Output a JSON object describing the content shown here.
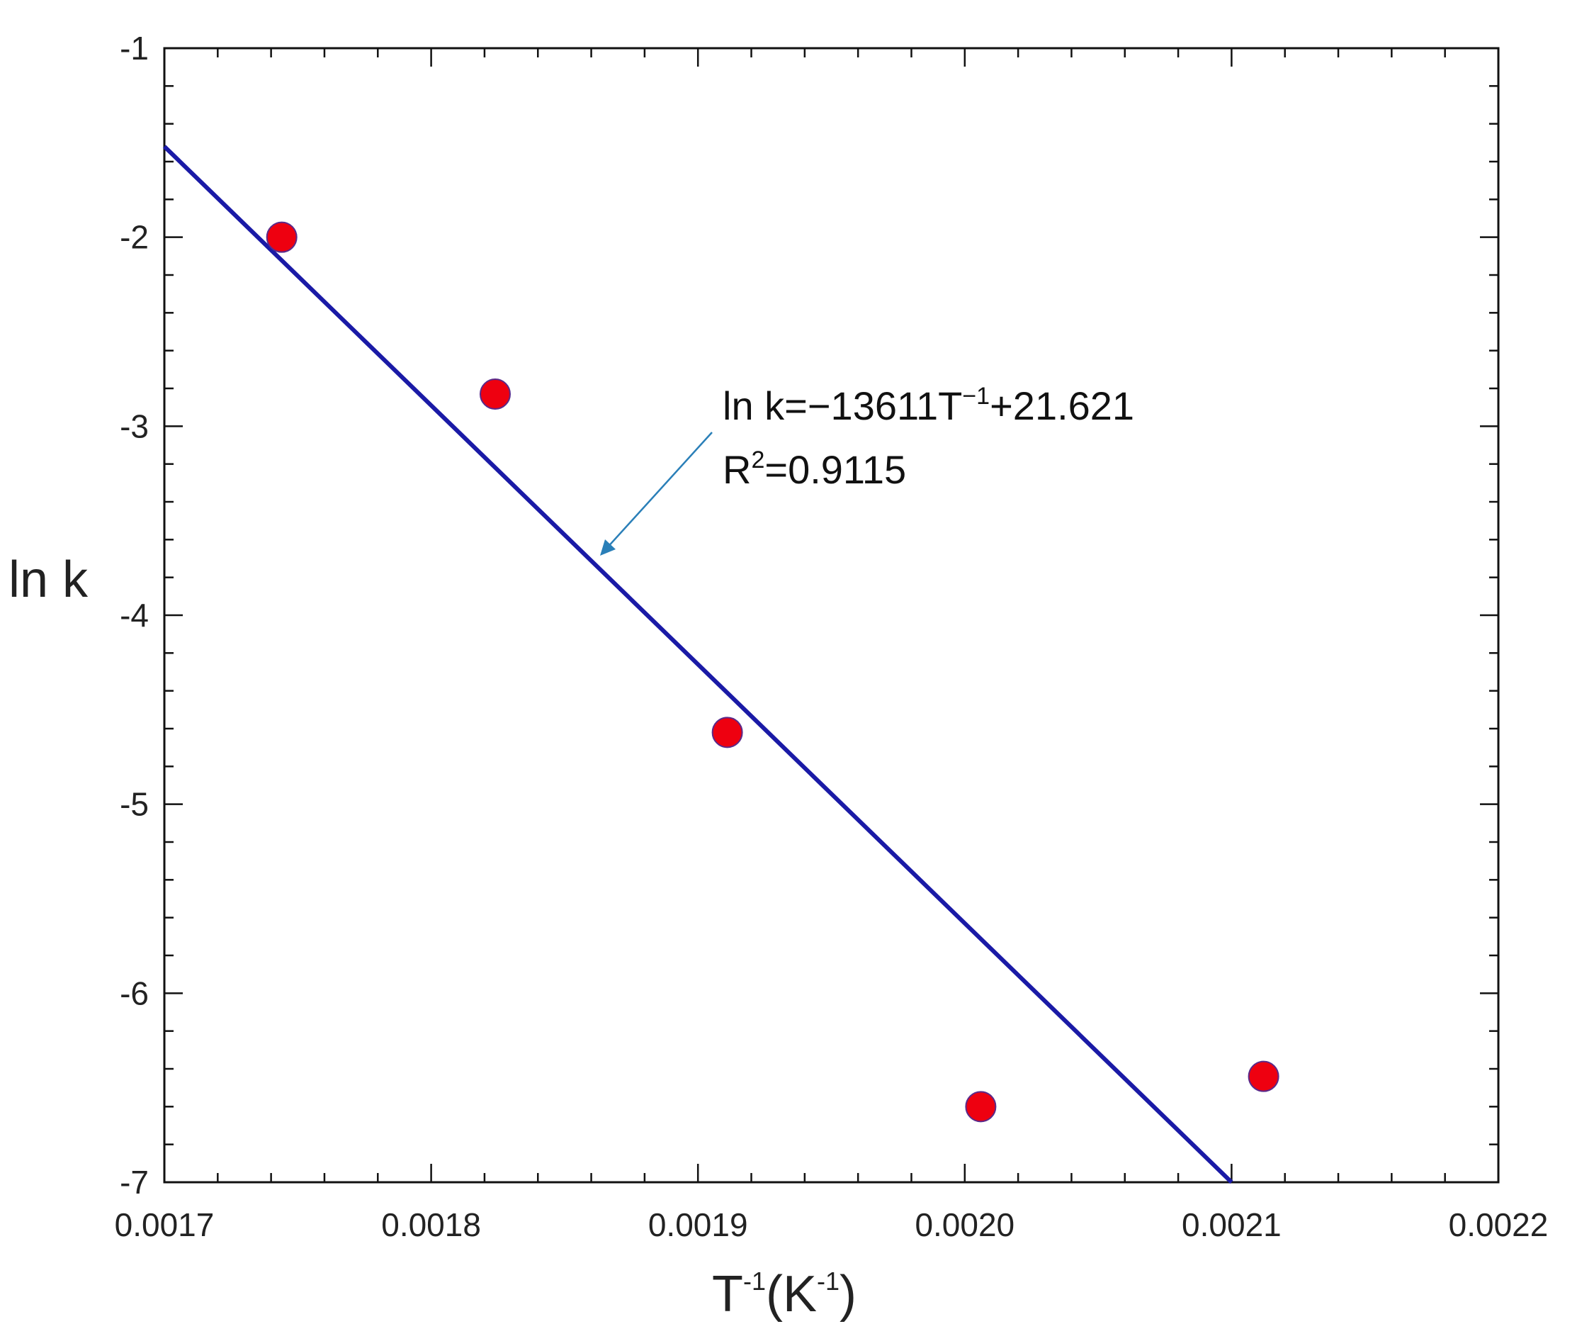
{
  "chart_data": {
    "type": "scatter",
    "xlim": [
      0.0017,
      0.0022
    ],
    "ylim": [
      -7,
      -1
    ],
    "x_ticks": [
      0.0017,
      0.0018,
      0.0019,
      0.002,
      0.0021,
      0.0022
    ],
    "x_tick_labels": [
      "0.0017",
      "0.0018",
      "0.0019",
      "0.0020",
      "0.0021",
      "0.0022"
    ],
    "y_ticks": [
      -1,
      -2,
      -3,
      -4,
      -5,
      -6,
      -7
    ],
    "y_tick_labels": [
      "-1",
      "-2",
      "-3",
      "-4",
      "-5",
      "-6",
      "-7"
    ],
    "xlabel": {
      "base": "T",
      "base_sup": "-1",
      "mid": "(K",
      "mid_sup": "-1",
      "end": ")"
    },
    "ylabel": "ln k",
    "grid": false,
    "series": [
      {
        "type": "scatter",
        "color": "#ee0010",
        "points": [
          {
            "x": 0.001744,
            "y": -2.0
          },
          {
            "x": 0.001824,
            "y": -2.83
          },
          {
            "x": 0.001911,
            "y": -4.62
          },
          {
            "x": 0.002006,
            "y": -6.6
          },
          {
            "x": 0.002112,
            "y": -6.44
          }
        ]
      },
      {
        "type": "line",
        "color": "#1a1aa6",
        "points": [
          {
            "x": 0.0017,
            "y": -1.52
          },
          {
            "x": 0.0021,
            "y": -7.0
          }
        ]
      }
    ],
    "annotation": {
      "line1_pre": "ln k=−13611T",
      "line1_sup": "−1",
      "line1_post": "+21.621",
      "line2_pre": "R",
      "line2_sup": "2",
      "line2_post": "=0.9115",
      "arrow_color": "#2a7fb8"
    }
  }
}
